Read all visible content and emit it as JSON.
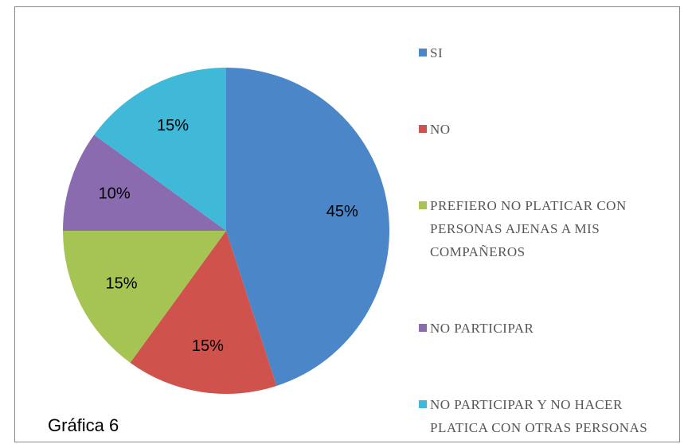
{
  "chart_data": {
    "type": "pie",
    "categories": [
      "SI",
      "NO",
      "PREFIERO NO PLATICAR CON PERSONAS AJENAS A MIS COMPAÑEROS",
      "NO PARTICIPAR",
      "NO PARTICIPAR Y NO HACER PLATICA CON OTRAS PERSONAS"
    ],
    "values": [
      45,
      15,
      15,
      10,
      15
    ],
    "value_labels": [
      "45%",
      "15%",
      "15%",
      "10%",
      "15%"
    ],
    "colors": [
      "#4a86c8",
      "#d0524c",
      "#a5c454",
      "#8a6bb0",
      "#40b8d8"
    ],
    "legend": "right",
    "caption": "Gráfica 6"
  }
}
